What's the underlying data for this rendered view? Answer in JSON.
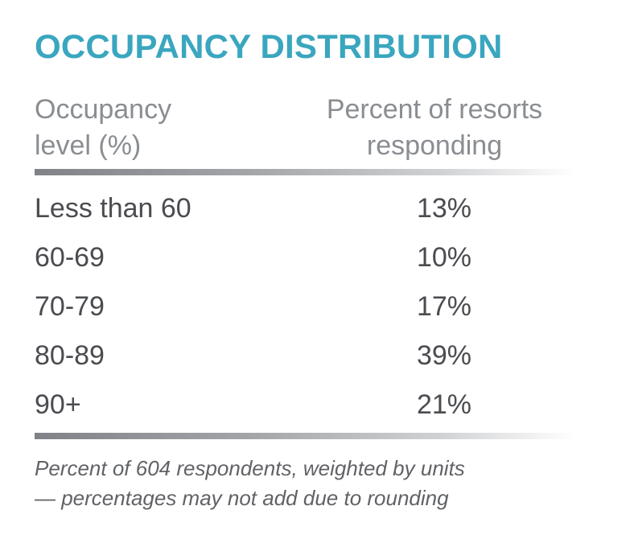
{
  "chart_data": {
    "type": "table",
    "title": "OCCUPANCY DISTRIBUTION",
    "columns": [
      {
        "lines": [
          "Occupancy",
          "level (%)"
        ]
      },
      {
        "lines": [
          "Percent of resorts",
          "responding"
        ]
      }
    ],
    "rows": [
      {
        "level": "Less than 60",
        "value": 13,
        "label": "13%"
      },
      {
        "level": "60-69",
        "value": 10,
        "label": "10%"
      },
      {
        "level": "70-79",
        "value": 17,
        "label": "17%"
      },
      {
        "level": "80-89",
        "value": 39,
        "label": "39%"
      },
      {
        "level": "90+",
        "value": 21,
        "label": "21%"
      }
    ],
    "footnote": [
      "Percent of 604 respondents, weighted by units",
      "— percentages may not add due to rounding"
    ]
  },
  "colors": {
    "title": "#3aa6bf",
    "header": "#8a8d91",
    "body": "#4a4c50",
    "rule": "#808288"
  }
}
